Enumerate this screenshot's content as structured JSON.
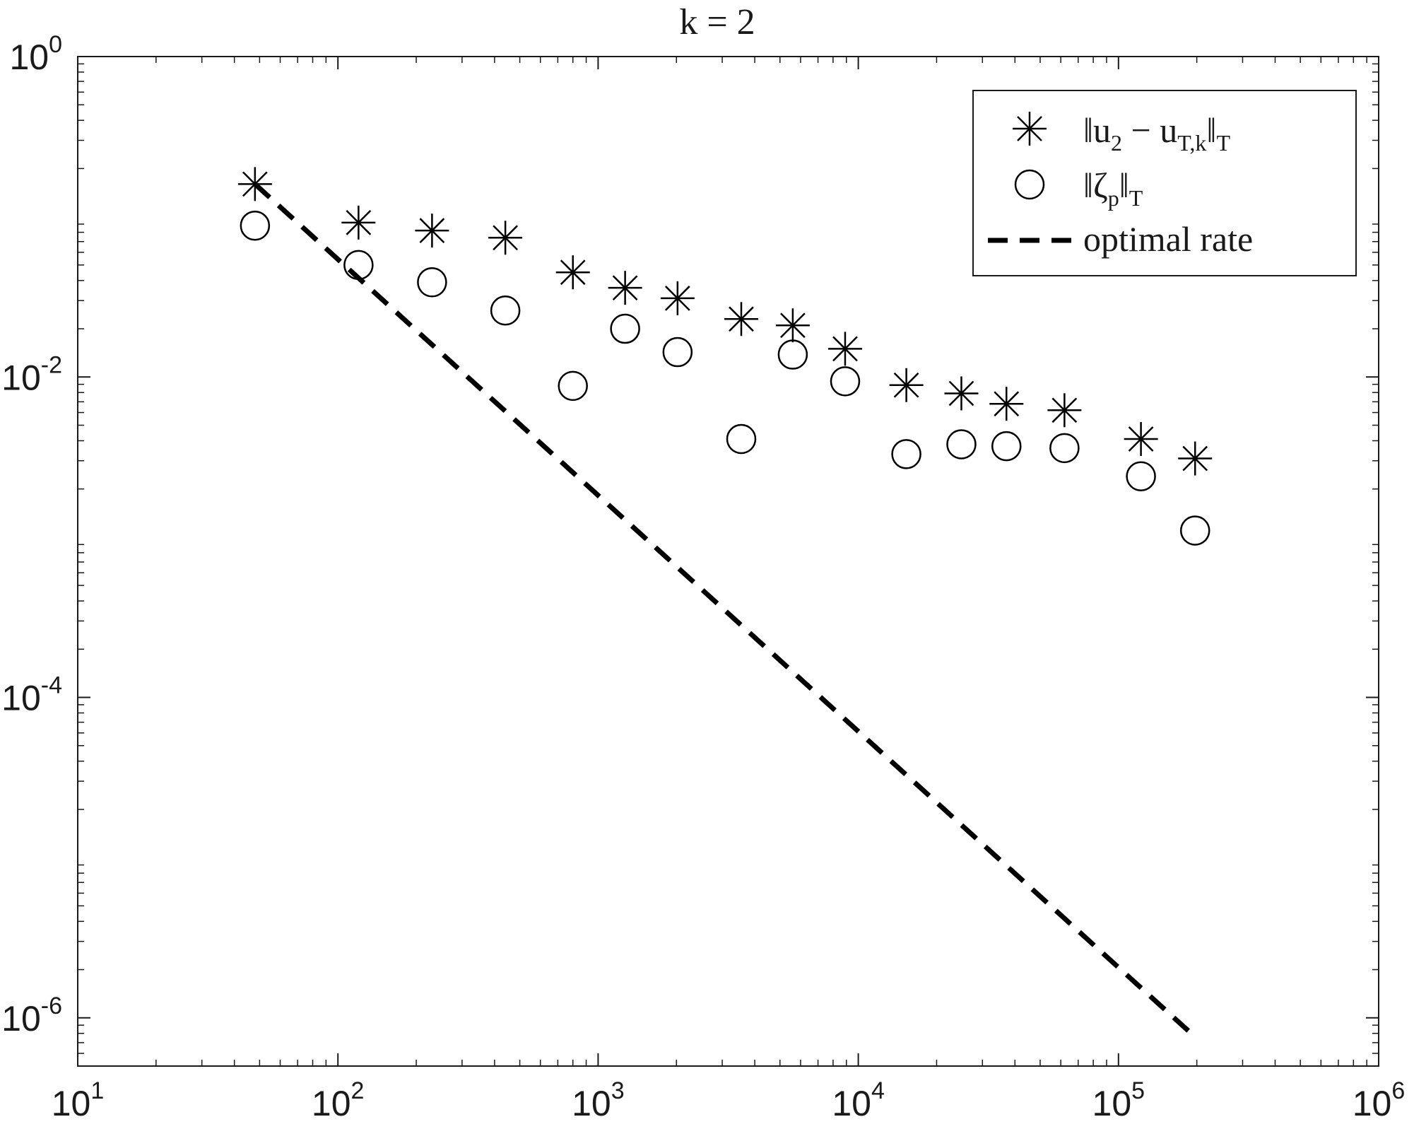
{
  "chart_data": {
    "type": "scatter",
    "title": "k = 2",
    "xscale": "log",
    "yscale": "log",
    "xlim": [
      10,
      1000000
    ],
    "ylim": [
      5e-07,
      1
    ],
    "xticks": [
      {
        "value": 10,
        "base": "10",
        "exp": "1"
      },
      {
        "value": 100,
        "base": "10",
        "exp": "2"
      },
      {
        "value": 1000,
        "base": "10",
        "exp": "3"
      },
      {
        "value": 10000,
        "base": "10",
        "exp": "4"
      },
      {
        "value": 100000,
        "base": "10",
        "exp": "5"
      },
      {
        "value": 1000000,
        "base": "10",
        "exp": "6"
      }
    ],
    "yticks": [
      {
        "value": 1,
        "base": "10",
        "exp": "0"
      },
      {
        "value": 0.01,
        "base": "10",
        "exp": "-2"
      },
      {
        "value": 0.0001,
        "base": "10",
        "exp": "-4"
      },
      {
        "value": 1e-06,
        "base": "10",
        "exp": "-6"
      }
    ],
    "grid": false,
    "legend_position": "top-right",
    "series": [
      {
        "name": "‖u2 − uT,k‖T",
        "label_parts": {
          "open": "‖u",
          "sub1": "2",
          "mid": " − u",
          "sub2": "T,k",
          "close": "‖",
          "sub3": "T"
        },
        "marker": "asterisk",
        "x": [
          48,
          120,
          230,
          440,
          800,
          1270,
          2020,
          3550,
          5600,
          8900,
          15300,
          24900,
          37100,
          62000,
          122000,
          197000
        ],
        "y": [
          0.16,
          0.092,
          0.082,
          0.074,
          0.045,
          0.036,
          0.031,
          0.023,
          0.021,
          0.015,
          0.0089,
          0.0079,
          0.0068,
          0.0062,
          0.0041,
          0.0031
        ]
      },
      {
        "name": "‖ζp‖T",
        "label_parts": {
          "open": "‖ζ",
          "sub1": "p",
          "close": "‖",
          "sub2": "T"
        },
        "marker": "circle",
        "x": [
          48,
          120,
          230,
          440,
          800,
          1270,
          2020,
          3550,
          5600,
          8900,
          15300,
          24900,
          37100,
          62000,
          122000,
          197000
        ],
        "y": [
          0.088,
          0.05,
          0.039,
          0.026,
          0.0088,
          0.02,
          0.0143,
          0.0041,
          0.0138,
          0.0094,
          0.0033,
          0.0038,
          0.0037,
          0.0036,
          0.0024,
          0.0011
        ]
      },
      {
        "name": "optimal rate",
        "style": "dashed",
        "x": [
          48,
          197000
        ],
        "y": [
          0.16,
          7.6e-07
        ]
      }
    ]
  },
  "colors": {
    "axis": "#1a1a1a",
    "marker": "#000000",
    "background": "#ffffff"
  }
}
